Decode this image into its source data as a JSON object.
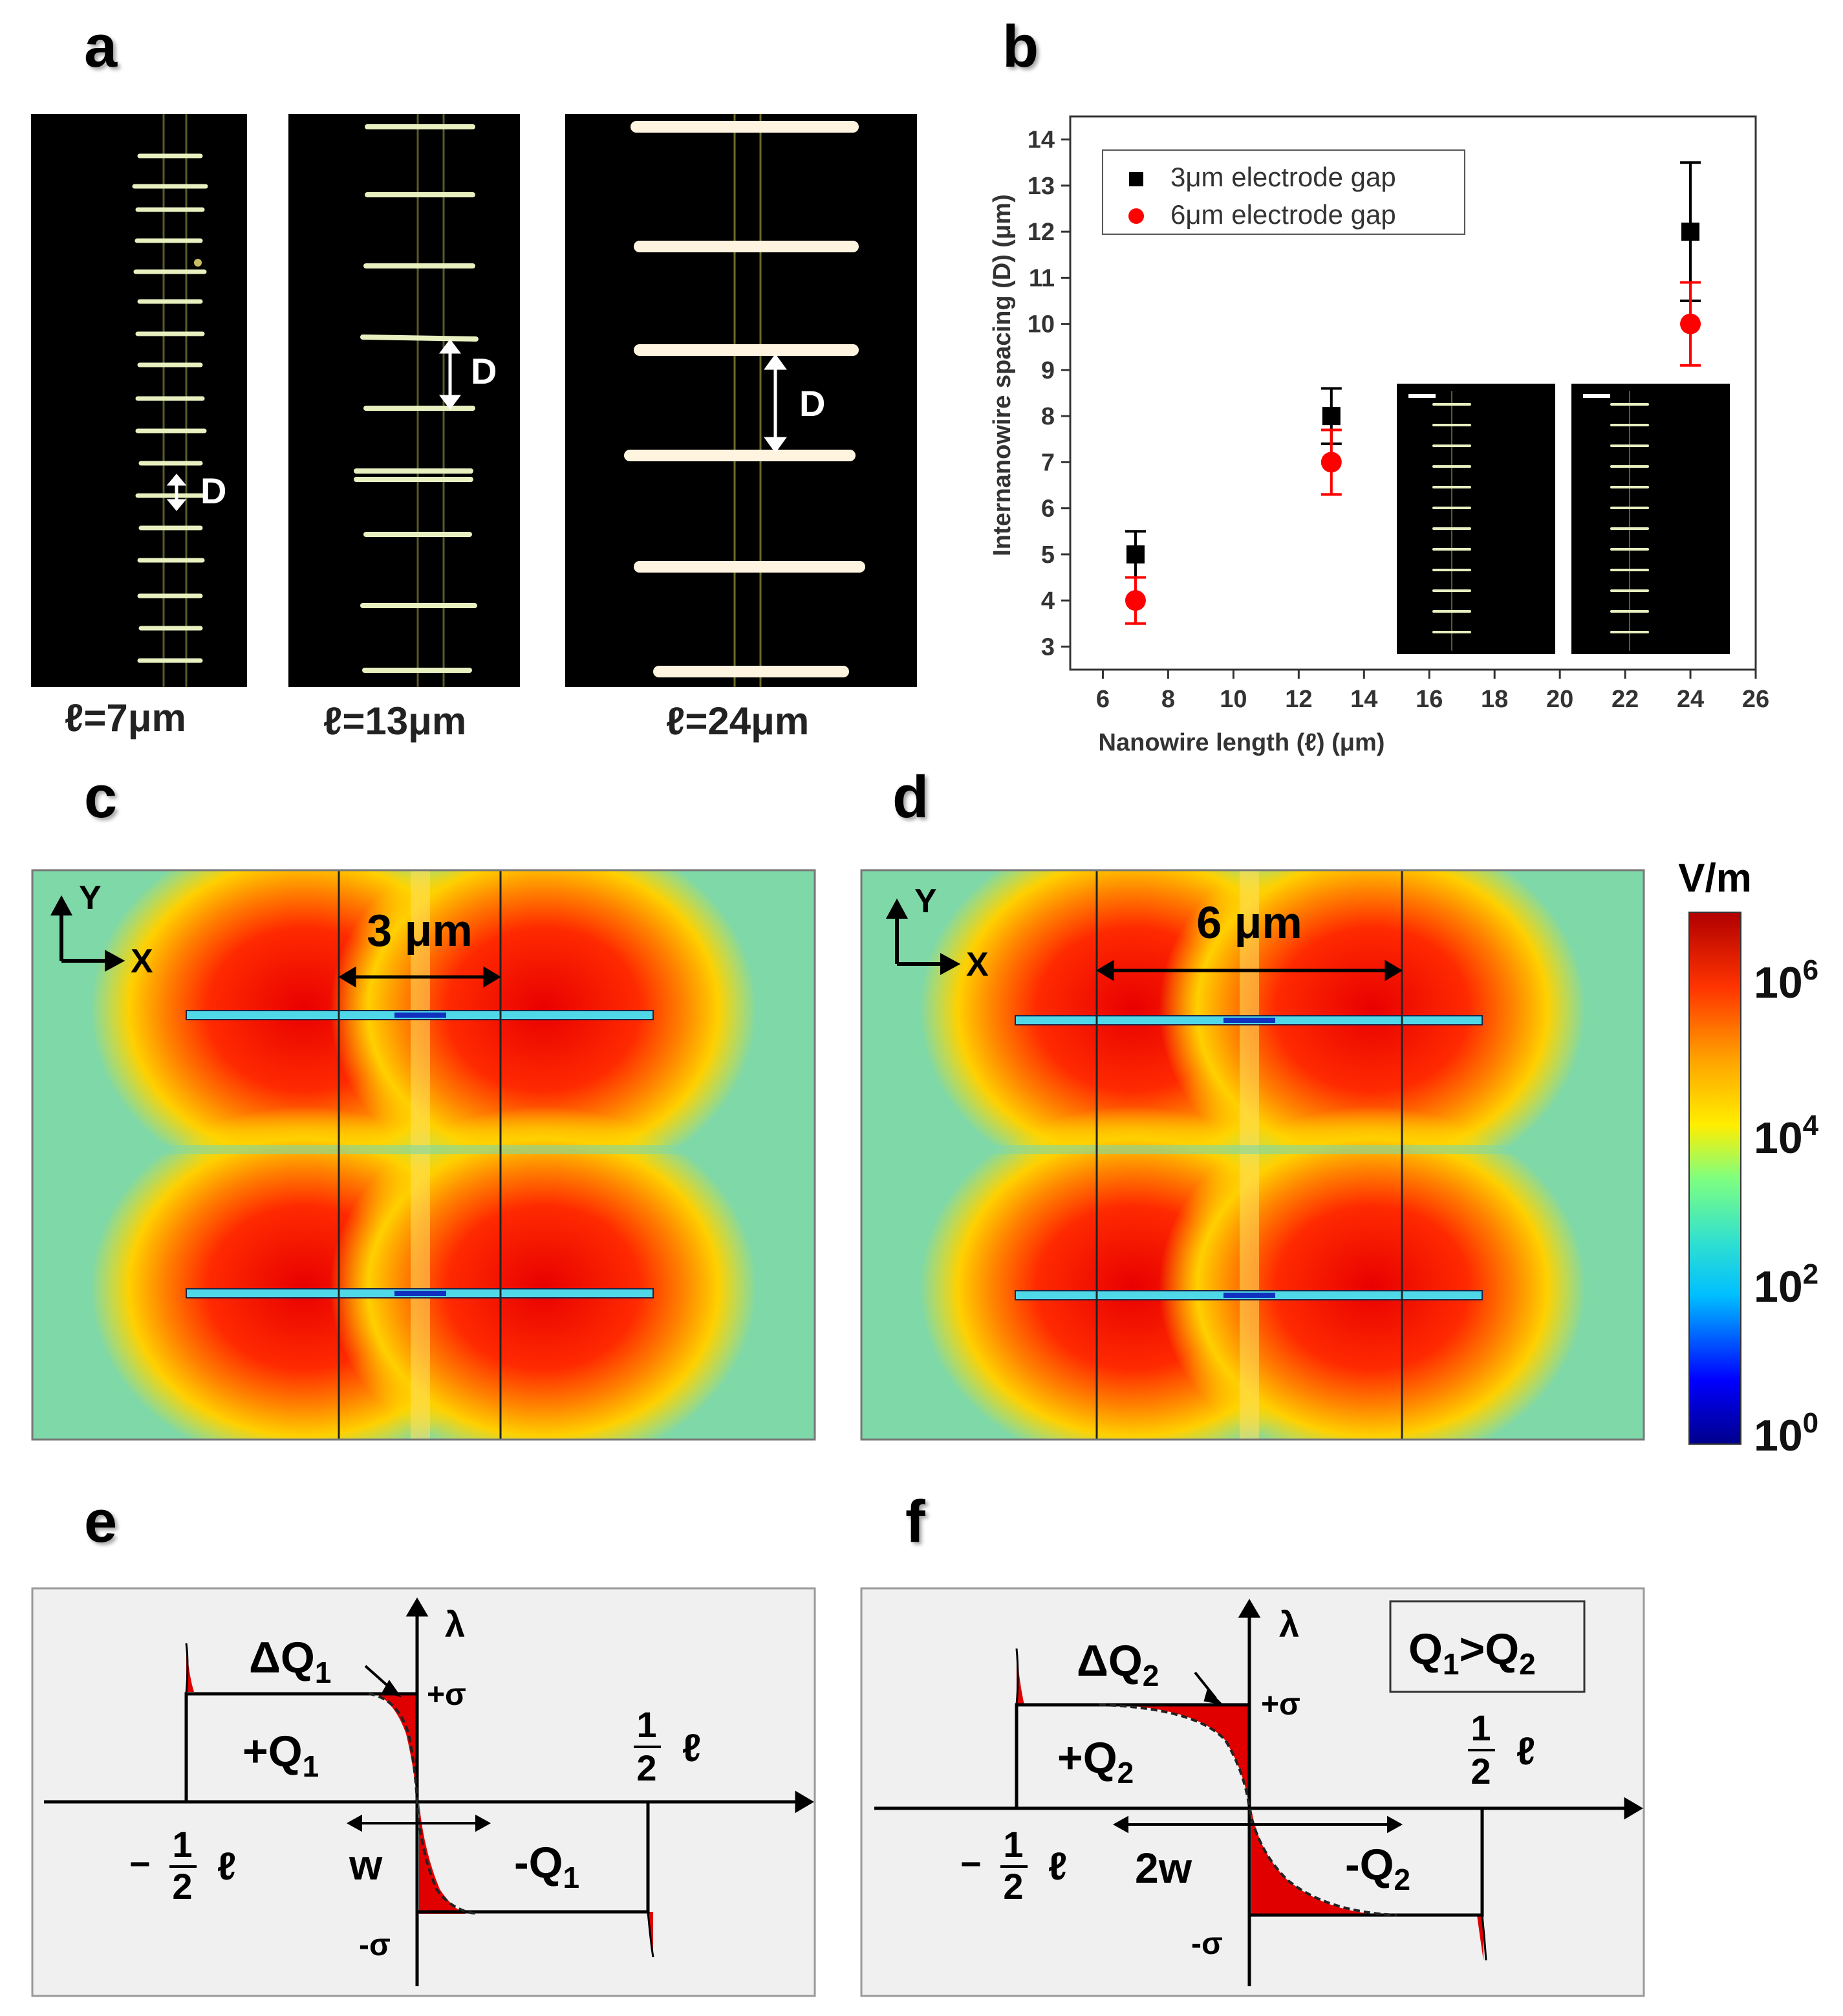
{
  "panels": {
    "a": {
      "letter": "a",
      "images": [
        {
          "caption": "ℓ=7μm",
          "spacing_label": "D"
        },
        {
          "caption": "ℓ=13μm",
          "spacing_label": "D"
        },
        {
          "caption": "ℓ=24μm",
          "spacing_label": "D"
        }
      ]
    },
    "b": {
      "letter": "b"
    },
    "c": {
      "letter": "c",
      "gap_label": "3 μm",
      "axis_y": "Y",
      "axis_x": "X"
    },
    "d": {
      "letter": "d",
      "gap_label": "6 μm",
      "axis_y": "Y",
      "axis_x": "X"
    },
    "colorbar": {
      "unit": "V/m",
      "ticks": [
        {
          "base": "10",
          "exp": "6"
        },
        {
          "base": "10",
          "exp": "4"
        },
        {
          "base": "10",
          "exp": "2"
        },
        {
          "base": "10",
          "exp": "0"
        }
      ],
      "colors": [
        "#00008b",
        "#0000ff",
        "#00bfff",
        "#30e0d0",
        "#7fff7f",
        "#ffee00",
        "#ffa500",
        "#ff3300",
        "#b00000"
      ]
    },
    "e": {
      "letter": "e",
      "lambda": "λ",
      "plus_sigma": "+σ",
      "minus_sigma": "-σ",
      "dq": {
        "prefix": "ΔQ",
        "sub": "1"
      },
      "plus_q": {
        "prefix": "+Q",
        "sub": "1"
      },
      "minus_q": {
        "prefix": "-Q",
        "sub": "1"
      },
      "width_label": "w",
      "half_num": "1",
      "half_den": "2",
      "ell": "ℓ",
      "minus": "−"
    },
    "f": {
      "letter": "f",
      "lambda": "λ",
      "plus_sigma": "+σ",
      "minus_sigma": "-σ",
      "dq": {
        "prefix": "ΔQ",
        "sub": "2"
      },
      "plus_q": {
        "prefix": "+Q",
        "sub": "2"
      },
      "minus_q": {
        "prefix": "-Q",
        "sub": "2"
      },
      "width_label": "2w",
      "half_num": "1",
      "half_den": "2",
      "ell": "ℓ",
      "minus": "−",
      "box": {
        "q1": "Q",
        "s1": "1",
        "gt": ">",
        "q2": "Q",
        "s2": "2"
      }
    }
  },
  "chart_data": {
    "type": "scatter",
    "title": "",
    "xlabel": "Nanowire length (ℓ) (μm)",
    "ylabel": "Internanowire spacing (D) (μm)",
    "xlim": [
      5,
      26
    ],
    "ylim": [
      2.5,
      14.5
    ],
    "xticks": [
      6,
      8,
      10,
      12,
      14,
      16,
      18,
      20,
      22,
      24,
      26
    ],
    "yticks": [
      3,
      4,
      5,
      6,
      7,
      8,
      9,
      10,
      11,
      12,
      13,
      14
    ],
    "legend_position": "top-left",
    "series": [
      {
        "name": "3μm electrode gap",
        "marker": "square",
        "color": "#000000",
        "x": [
          7,
          13,
          24
        ],
        "y": [
          5,
          8,
          12
        ],
        "err": [
          0.5,
          0.6,
          1.5
        ]
      },
      {
        "name": "6μm electrode gap",
        "marker": "circle",
        "color": "#ff0000",
        "x": [
          7,
          13,
          24
        ],
        "y": [
          4,
          7,
          10
        ],
        "err": [
          0.5,
          0.7,
          0.9
        ]
      }
    ]
  }
}
